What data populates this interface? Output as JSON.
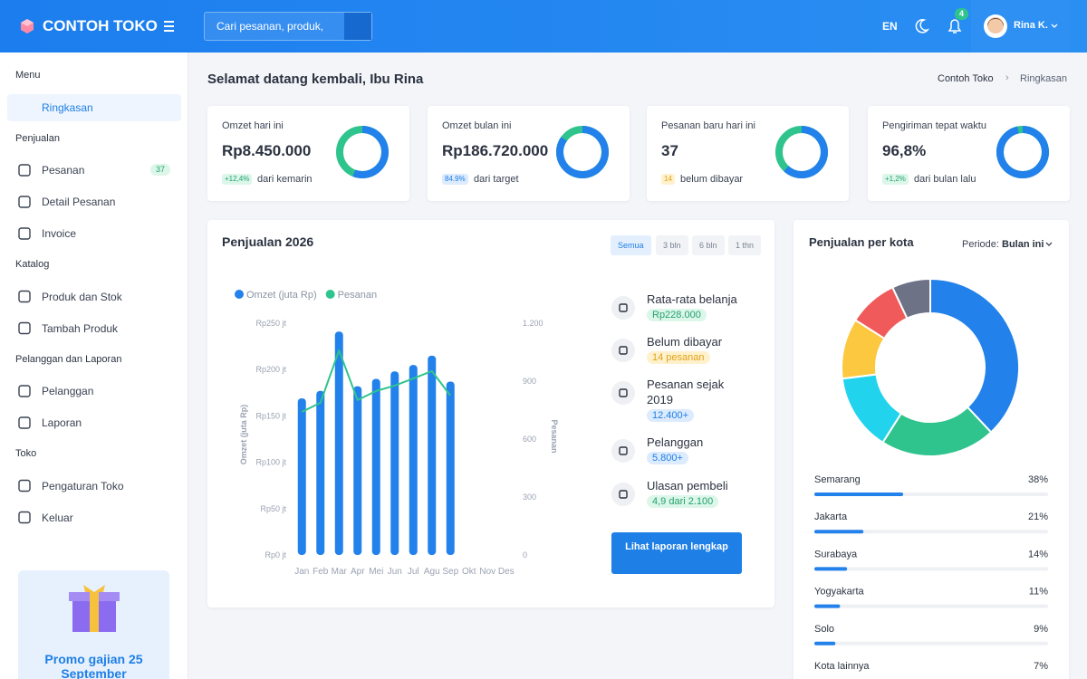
{
  "header": {
    "brand": "CONTOH TOKO",
    "search_placeholder": "Cari pesanan, produk,",
    "language": "EN",
    "notification_count": 4,
    "user": "Rina K."
  },
  "sidebar": {
    "sections": [
      {
        "title": "Menu",
        "items": [
          {
            "label": "Ringkasan",
            "active": true
          }
        ]
      },
      {
        "title": "Penjualan",
        "items": [
          {
            "label": "Pesanan",
            "badge": 37
          },
          {
            "label": "Detail Pesanan"
          },
          {
            "label": "Invoice"
          }
        ]
      },
      {
        "title": "Katalog",
        "items": [
          {
            "label": "Produk dan Stok"
          },
          {
            "label": "Tambah Produk"
          }
        ]
      },
      {
        "title": "Pelanggan dan Laporan",
        "items": [
          {
            "label": "Pelanggan"
          },
          {
            "label": "Laporan"
          }
        ]
      },
      {
        "title": "Toko",
        "items": [
          {
            "label": "Pengaturan Toko"
          },
          {
            "label": "Keluar"
          }
        ]
      }
    ],
    "promo": "Promo gajian 25 September"
  },
  "page": {
    "greeting": "Selamat datang kembali, Ibu Rina",
    "breadcrumb": [
      "Contoh Toko",
      "Ringkasan"
    ]
  },
  "kpis": [
    {
      "label": "Omzet hari ini",
      "value": "Rp8.450.000",
      "badge": "+12,4%",
      "note": "dari kemarin",
      "tone": "green",
      "progress": 56,
      "color": "#2281ea",
      "track": "#2fc48d"
    },
    {
      "label": "Omzet bulan ini",
      "value": "Rp186.720.000",
      "badge": "84.9%",
      "note": "dari target",
      "tone": "blue",
      "progress": 84.9,
      "color": "#2281ea",
      "track": "#2fc48d"
    },
    {
      "label": "Pesanan baru hari ini",
      "value": "37",
      "badge": "14",
      "note": "belum dibayar",
      "tone": "yellow",
      "progress": 62,
      "color": "#2281ea",
      "track": "#2fc48d"
    },
    {
      "label": "Pengiriman tepat waktu",
      "value": "96,8%",
      "badge": "+1,2%",
      "note": "dari bulan lalu",
      "tone": "green",
      "progress": 96.8,
      "color": "#2281ea",
      "track": "#2fc48d"
    }
  ],
  "chart_data": [
    {
      "type": "bar",
      "title": "Penjualan 2026",
      "filters": [
        {
          "label": "Semua",
          "active": true
        },
        {
          "label": "3 bln"
        },
        {
          "label": "6 bln"
        },
        {
          "label": "1 thn"
        }
      ],
      "categories": [
        "Jan",
        "Feb",
        "Mar",
        "Apr",
        "Mei",
        "Jun",
        "Jul",
        "Agu",
        "Sep",
        "Okt",
        "Nov",
        "Des"
      ],
      "series": [
        {
          "name": "Omzet (juta Rp)",
          "color": "#2281ea",
          "values": [
            169,
            177,
            241,
            182,
            190,
            198,
            205,
            215,
            187,
            null,
            null,
            null
          ]
        },
        {
          "name": "Pesanan",
          "color": "#2fc48d",
          "axis": "y2",
          "values": [
            741,
            788,
            1059,
            802,
            849,
            877,
            914,
            952,
            825,
            null,
            null,
            null
          ]
        }
      ],
      "ylabel": "Omzet (juta Rp)",
      "y2label": "Pesanan",
      "ylim": [
        0,
        250
      ],
      "yticks": [
        {
          "value": 0,
          "label": "Rp0 jt"
        },
        {
          "value": 50,
          "label": "Rp50 jt"
        },
        {
          "value": 100,
          "label": "Rp100 jt"
        },
        {
          "value": 150,
          "label": "Rp150 jt"
        },
        {
          "value": 200,
          "label": "Rp200 jt"
        },
        {
          "value": 250,
          "label": "Rp250 jt"
        }
      ],
      "y2lim": [
        0,
        1200
      ],
      "y2ticks": [
        0,
        300,
        600,
        900,
        {
          "value": 1200,
          "label": "1.200"
        }
      ],
      "grid": false
    },
    {
      "type": "donut",
      "title": "Penjualan per kota",
      "period_label": "Periode:",
      "period": "Bulan ini",
      "categories": [
        "Semarang",
        "Jakarta",
        "Surabaya",
        "Yogyakarta",
        "Solo",
        "Kota lainnya"
      ],
      "values": [
        38,
        21,
        14,
        11,
        9,
        7
      ],
      "value_labels": [
        "38%",
        "21%",
        "14%",
        "11%",
        "9%",
        "7%"
      ],
      "colors": [
        "#2281ea",
        "#2fc48d",
        "#22d3ee",
        "#fcc840",
        "#f05a5a",
        "#6e7287"
      ],
      "bar_color": "#2281ea"
    }
  ],
  "stats": [
    {
      "label": "Rata-rata belanja",
      "badge": "Rp228.000",
      "tone": "green"
    },
    {
      "label": "Belum dibayar",
      "badge": "14 pesanan",
      "tone": "yellow"
    },
    {
      "label": "Pesanan sejak 2019",
      "badge": "12.400+",
      "tone": "blue"
    },
    {
      "label": "Pelanggan",
      "badge": "5.800+",
      "tone": "blue"
    },
    {
      "label": "Ulasan pembeli",
      "badge": "4,9 dari 2.100",
      "tone": "green"
    }
  ],
  "report_button": "Lihat laporan lengkap"
}
